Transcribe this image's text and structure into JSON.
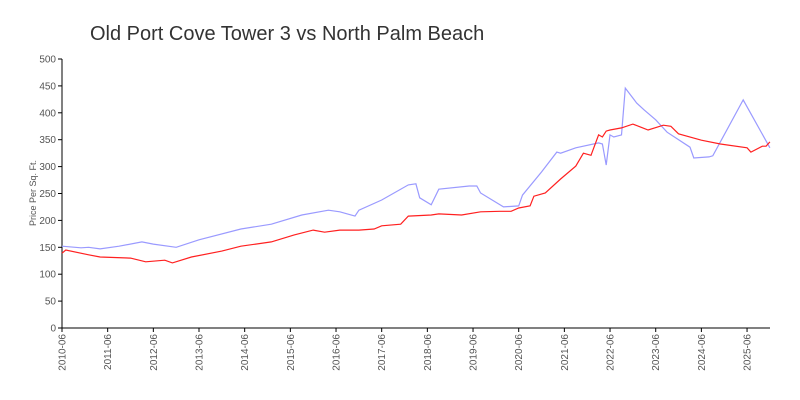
{
  "chart_data": {
    "type": "line",
    "title": "Old Port Cove Tower 3 vs North Palm Beach",
    "xlabel": "",
    "ylabel": "Price Per Sq. Ft.",
    "ylim": [
      0,
      500
    ],
    "yticks": [
      "0",
      "50",
      "100",
      "150",
      "200",
      "250",
      "300",
      "350",
      "400",
      "450",
      "500"
    ],
    "xticks": [
      "2010-06",
      "2011-06",
      "2012-06",
      "2013-06",
      "2014-06",
      "2015-06",
      "2016-06",
      "2017-06",
      "2018-06",
      "2019-06",
      "2020-06",
      "2021-06",
      "2022-06",
      "2023-06",
      "2024-06",
      "2025-06"
    ],
    "grid": false,
    "series": [
      {
        "color": "#9a9aff",
        "points": [
          [
            "2010-06",
            152
          ],
          [
            "2010-11",
            149
          ],
          [
            "2011-01",
            150
          ],
          [
            "2011-04",
            147
          ],
          [
            "2011-09",
            152
          ],
          [
            "2012-03",
            160
          ],
          [
            "2012-06",
            156
          ],
          [
            "2012-12",
            150
          ],
          [
            "2013-06",
            164
          ],
          [
            "2014-05",
            184
          ],
          [
            "2015-01",
            193
          ],
          [
            "2015-09",
            210
          ],
          [
            "2016-04",
            219
          ],
          [
            "2016-07",
            216
          ],
          [
            "2016-11",
            208
          ],
          [
            "2016-12",
            219
          ],
          [
            "2017-06",
            238
          ],
          [
            "2018-01",
            266
          ],
          [
            "2018-03",
            268
          ],
          [
            "2018-04",
            242
          ],
          [
            "2018-07",
            229
          ],
          [
            "2018-09",
            258
          ],
          [
            "2019-05",
            264
          ],
          [
            "2019-07",
            264
          ],
          [
            "2019-08",
            251
          ],
          [
            "2020-02",
            225
          ],
          [
            "2020-06",
            227
          ],
          [
            "2020-07",
            247
          ],
          [
            "2020-12",
            290
          ],
          [
            "2021-04",
            327
          ],
          [
            "2021-05",
            325
          ],
          [
            "2021-09",
            335
          ],
          [
            "2022-03",
            344
          ],
          [
            "2022-04",
            342
          ],
          [
            "2022-05",
            303
          ],
          [
            "2022-06",
            359
          ],
          [
            "2022-07",
            355
          ],
          [
            "2022-09",
            359
          ],
          [
            "2022-10",
            446
          ],
          [
            "2023-01",
            418
          ],
          [
            "2023-03",
            405
          ],
          [
            "2023-06",
            387
          ],
          [
            "2023-09",
            364
          ],
          [
            "2024-03",
            336
          ],
          [
            "2024-04",
            316
          ],
          [
            "2024-08",
            318
          ],
          [
            "2024-09",
            320
          ],
          [
            "2025-05",
            424
          ],
          [
            "2025-12",
            335
          ]
        ]
      },
      {
        "color": "#ff2020",
        "points": [
          [
            "2010-06",
            139
          ],
          [
            "2010-07",
            145
          ],
          [
            "2011-01",
            136
          ],
          [
            "2011-04",
            132
          ],
          [
            "2011-12",
            130
          ],
          [
            "2012-04",
            123
          ],
          [
            "2012-09",
            126
          ],
          [
            "2012-11",
            121
          ],
          [
            "2013-04",
            132
          ],
          [
            "2013-12",
            143
          ],
          [
            "2014-05",
            152
          ],
          [
            "2015-01",
            160
          ],
          [
            "2015-07",
            173
          ],
          [
            "2015-12",
            182
          ],
          [
            "2016-03",
            178
          ],
          [
            "2016-07",
            182
          ],
          [
            "2016-12",
            182
          ],
          [
            "2017-04",
            184
          ],
          [
            "2017-06",
            190
          ],
          [
            "2017-11",
            193
          ],
          [
            "2018-01",
            208
          ],
          [
            "2018-07",
            210
          ],
          [
            "2018-09",
            212
          ],
          [
            "2019-03",
            210
          ],
          [
            "2019-08",
            216
          ],
          [
            "2020-01",
            217
          ],
          [
            "2020-04",
            217
          ],
          [
            "2020-06",
            223
          ],
          [
            "2020-09",
            227
          ],
          [
            "2020-10",
            245
          ],
          [
            "2021-01",
            251
          ],
          [
            "2021-05",
            277
          ],
          [
            "2021-09",
            301
          ],
          [
            "2021-11",
            325
          ],
          [
            "2022-01",
            321
          ],
          [
            "2022-03",
            359
          ],
          [
            "2022-04",
            355
          ],
          [
            "2022-05",
            366
          ],
          [
            "2022-06",
            368
          ],
          [
            "2022-09",
            372
          ],
          [
            "2022-12",
            379
          ],
          [
            "2023-04",
            368
          ],
          [
            "2023-08",
            377
          ],
          [
            "2023-10",
            375
          ],
          [
            "2023-12",
            361
          ],
          [
            "2024-06",
            349
          ],
          [
            "2024-11",
            342
          ],
          [
            "2025-06",
            335
          ],
          [
            "2025-07",
            327
          ],
          [
            "2025-10",
            338
          ],
          [
            "2025-11",
            338
          ],
          [
            "2025-12",
            346
          ]
        ]
      }
    ]
  }
}
